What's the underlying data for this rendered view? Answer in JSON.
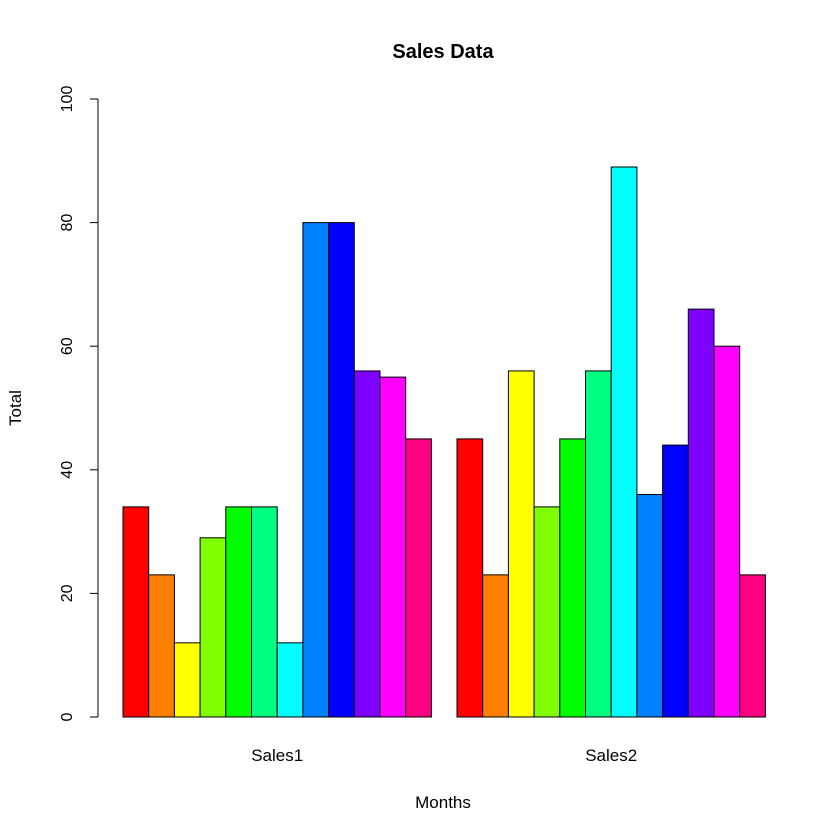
{
  "chart_data": {
    "type": "bar",
    "grouped": true,
    "title": "Sales Data",
    "xlabel": "Months",
    "ylabel": "Total",
    "categories": [
      "Sales1",
      "Sales2"
    ],
    "ylim": [
      0,
      100
    ],
    "yticks": [
      "0",
      "20",
      "40",
      "60",
      "80",
      "100"
    ],
    "grid": false,
    "legend": "none",
    "series": [
      {
        "color": "#FF0000",
        "values": [
          34,
          45
        ]
      },
      {
        "color": "#FF8000",
        "values": [
          23,
          23
        ]
      },
      {
        "color": "#FFFF00",
        "values": [
          12,
          56
        ]
      },
      {
        "color": "#80FF00",
        "values": [
          29,
          34
        ]
      },
      {
        "color": "#00FF00",
        "values": [
          34,
          45
        ]
      },
      {
        "color": "#00FF80",
        "values": [
          34,
          56
        ]
      },
      {
        "color": "#00FFFF",
        "values": [
          12,
          89
        ]
      },
      {
        "color": "#0080FF",
        "values": [
          80,
          36
        ]
      },
      {
        "color": "#0000FF",
        "values": [
          80,
          44
        ]
      },
      {
        "color": "#8000FF",
        "values": [
          56,
          66
        ]
      },
      {
        "color": "#FF00FF",
        "values": [
          55,
          60
        ]
      },
      {
        "color": "#FF0080",
        "values": [
          45,
          23
        ]
      }
    ]
  }
}
